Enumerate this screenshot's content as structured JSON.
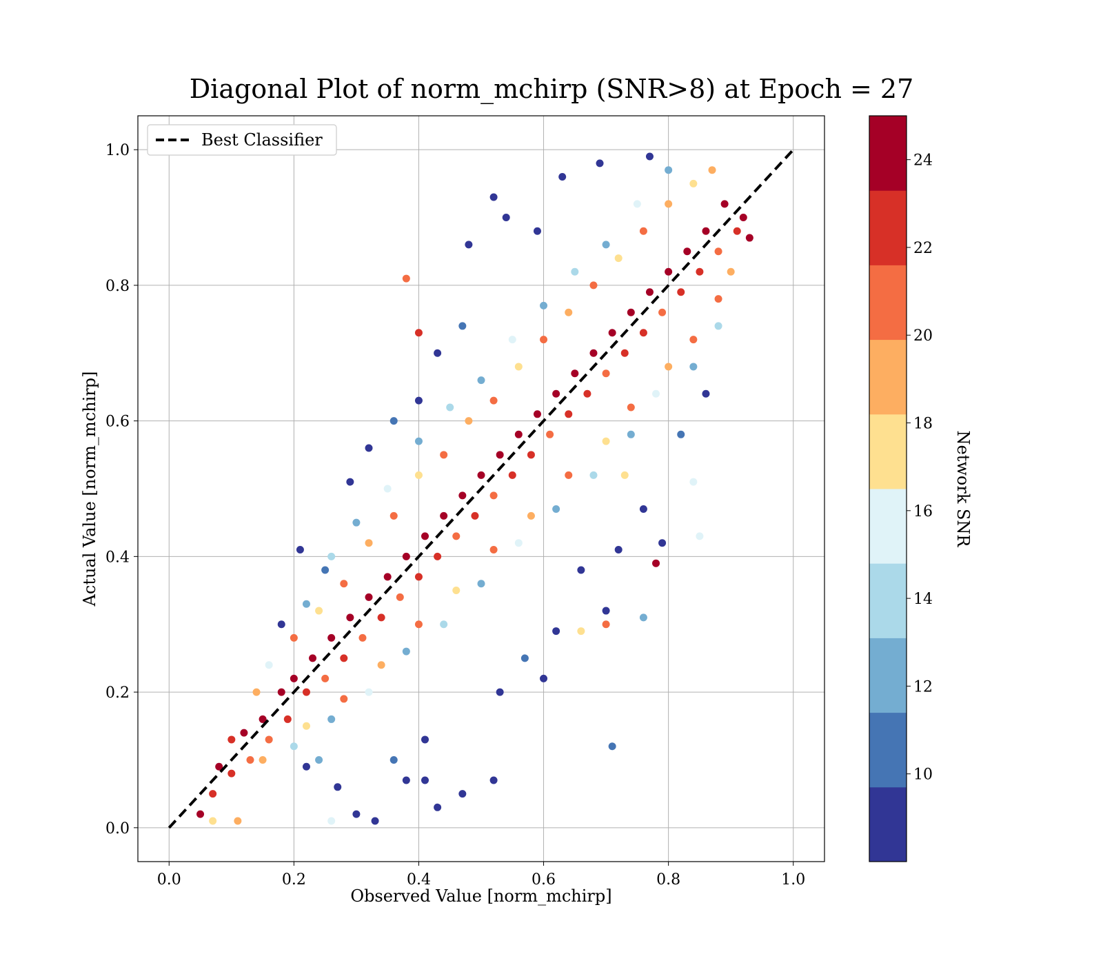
{
  "chart_data": {
    "type": "scatter",
    "title": "Diagonal Plot of norm_mchirp (SNR>8) at Epoch = 27",
    "xlabel": "Observed Value [norm_mchirp]",
    "ylabel": "Actual Value [norm_mchirp]",
    "xlim": [
      -0.05,
      1.05
    ],
    "ylim": [
      -0.05,
      1.05
    ],
    "xticks": [
      "0.0",
      "0.2",
      "0.4",
      "0.6",
      "0.8",
      "1.0"
    ],
    "yticks": [
      "0.0",
      "0.2",
      "0.4",
      "0.6",
      "0.8",
      "1.0"
    ],
    "grid": true,
    "legend": {
      "position": "top-left",
      "entries": [
        {
          "name": "Best Classifier",
          "style": "dashed",
          "color": "#000000"
        }
      ]
    },
    "reference_line": {
      "name": "Best Classifier",
      "x": [
        0,
        1
      ],
      "y": [
        0,
        1
      ]
    },
    "colorbar": {
      "label": "Network SNR",
      "range": [
        8,
        25
      ],
      "ticks": [
        "10",
        "12",
        "14",
        "16",
        "18",
        "20",
        "22",
        "24"
      ],
      "colors": [
        "#313695",
        "#4575b4",
        "#74add1",
        "#abd9e9",
        "#e0f3f8",
        "#fee090",
        "#fdae61",
        "#f46d43",
        "#d73027",
        "#a50026"
      ]
    },
    "series": [
      {
        "color_by": "Network SNR",
        "points": [
          [
            0.05,
            0.02,
            24
          ],
          [
            0.07,
            0.05,
            23
          ],
          [
            0.08,
            0.09,
            24
          ],
          [
            0.1,
            0.08,
            22
          ],
          [
            0.12,
            0.14,
            24
          ],
          [
            0.13,
            0.1,
            20
          ],
          [
            0.15,
            0.16,
            24
          ],
          [
            0.16,
            0.13,
            21
          ],
          [
            0.18,
            0.2,
            24
          ],
          [
            0.19,
            0.16,
            23
          ],
          [
            0.2,
            0.22,
            24
          ],
          [
            0.22,
            0.2,
            22
          ],
          [
            0.23,
            0.25,
            24
          ],
          [
            0.25,
            0.22,
            20
          ],
          [
            0.26,
            0.28,
            24
          ],
          [
            0.28,
            0.25,
            23
          ],
          [
            0.29,
            0.31,
            24
          ],
          [
            0.31,
            0.28,
            21
          ],
          [
            0.32,
            0.34,
            24
          ],
          [
            0.34,
            0.31,
            22
          ],
          [
            0.35,
            0.37,
            24
          ],
          [
            0.37,
            0.34,
            20
          ],
          [
            0.38,
            0.4,
            24
          ],
          [
            0.4,
            0.37,
            23
          ],
          [
            0.41,
            0.43,
            24
          ],
          [
            0.43,
            0.4,
            22
          ],
          [
            0.44,
            0.46,
            24
          ],
          [
            0.46,
            0.43,
            21
          ],
          [
            0.47,
            0.49,
            24
          ],
          [
            0.49,
            0.46,
            23
          ],
          [
            0.5,
            0.52,
            24
          ],
          [
            0.52,
            0.49,
            20
          ],
          [
            0.53,
            0.55,
            24
          ],
          [
            0.55,
            0.52,
            22
          ],
          [
            0.56,
            0.58,
            24
          ],
          [
            0.58,
            0.55,
            23
          ],
          [
            0.59,
            0.61,
            24
          ],
          [
            0.61,
            0.58,
            21
          ],
          [
            0.62,
            0.64,
            24
          ],
          [
            0.64,
            0.61,
            22
          ],
          [
            0.65,
            0.67,
            24
          ],
          [
            0.67,
            0.64,
            23
          ],
          [
            0.68,
            0.7,
            24
          ],
          [
            0.7,
            0.67,
            20
          ],
          [
            0.71,
            0.73,
            24
          ],
          [
            0.73,
            0.7,
            22
          ],
          [
            0.74,
            0.76,
            24
          ],
          [
            0.76,
            0.73,
            23
          ],
          [
            0.77,
            0.79,
            24
          ],
          [
            0.79,
            0.76,
            21
          ],
          [
            0.8,
            0.82,
            24
          ],
          [
            0.82,
            0.79,
            22
          ],
          [
            0.83,
            0.85,
            24
          ],
          [
            0.85,
            0.82,
            23
          ],
          [
            0.86,
            0.88,
            24
          ],
          [
            0.88,
            0.85,
            20
          ],
          [
            0.89,
            0.92,
            24
          ],
          [
            0.91,
            0.88,
            22
          ],
          [
            0.92,
            0.9,
            24
          ],
          [
            0.93,
            0.87,
            24
          ],
          [
            0.1,
            0.13,
            22
          ],
          [
            0.14,
            0.2,
            19
          ],
          [
            0.2,
            0.28,
            21
          ],
          [
            0.24,
            0.32,
            18
          ],
          [
            0.28,
            0.36,
            20
          ],
          [
            0.32,
            0.42,
            19
          ],
          [
            0.36,
            0.46,
            21
          ],
          [
            0.4,
            0.52,
            18
          ],
          [
            0.44,
            0.55,
            20
          ],
          [
            0.48,
            0.6,
            19
          ],
          [
            0.52,
            0.63,
            21
          ],
          [
            0.56,
            0.68,
            18
          ],
          [
            0.6,
            0.72,
            20
          ],
          [
            0.64,
            0.76,
            19
          ],
          [
            0.68,
            0.8,
            21
          ],
          [
            0.72,
            0.84,
            18
          ],
          [
            0.76,
            0.88,
            20
          ],
          [
            0.8,
            0.92,
            19
          ],
          [
            0.84,
            0.95,
            18
          ],
          [
            0.87,
            0.97,
            19
          ],
          [
            0.15,
            0.1,
            19
          ],
          [
            0.22,
            0.15,
            18
          ],
          [
            0.28,
            0.19,
            20
          ],
          [
            0.34,
            0.24,
            19
          ],
          [
            0.4,
            0.3,
            21
          ],
          [
            0.46,
            0.35,
            18
          ],
          [
            0.52,
            0.41,
            20
          ],
          [
            0.58,
            0.46,
            19
          ],
          [
            0.64,
            0.52,
            21
          ],
          [
            0.7,
            0.57,
            18
          ],
          [
            0.74,
            0.62,
            20
          ],
          [
            0.8,
            0.68,
            19
          ],
          [
            0.84,
            0.72,
            21
          ],
          [
            0.88,
            0.78,
            20
          ],
          [
            0.9,
            0.82,
            19
          ],
          [
            0.16,
            0.24,
            15
          ],
          [
            0.22,
            0.33,
            13
          ],
          [
            0.26,
            0.4,
            14
          ],
          [
            0.3,
            0.45,
            12
          ],
          [
            0.35,
            0.5,
            15
          ],
          [
            0.4,
            0.57,
            13
          ],
          [
            0.45,
            0.62,
            14
          ],
          [
            0.5,
            0.66,
            12
          ],
          [
            0.55,
            0.72,
            15
          ],
          [
            0.6,
            0.77,
            13
          ],
          [
            0.65,
            0.82,
            14
          ],
          [
            0.7,
            0.86,
            12
          ],
          [
            0.75,
            0.92,
            15
          ],
          [
            0.8,
            0.97,
            13
          ],
          [
            0.2,
            0.12,
            14
          ],
          [
            0.26,
            0.16,
            12
          ],
          [
            0.32,
            0.2,
            15
          ],
          [
            0.38,
            0.26,
            13
          ],
          [
            0.44,
            0.3,
            14
          ],
          [
            0.5,
            0.36,
            12
          ],
          [
            0.56,
            0.42,
            15
          ],
          [
            0.62,
            0.47,
            13
          ],
          [
            0.68,
            0.52,
            14
          ],
          [
            0.74,
            0.58,
            12
          ],
          [
            0.78,
            0.64,
            15
          ],
          [
            0.84,
            0.68,
            13
          ],
          [
            0.88,
            0.74,
            14
          ],
          [
            0.18,
            0.3,
            9
          ],
          [
            0.21,
            0.41,
            9
          ],
          [
            0.25,
            0.38,
            10
          ],
          [
            0.29,
            0.51,
            9
          ],
          [
            0.32,
            0.56,
            9
          ],
          [
            0.36,
            0.6,
            10
          ],
          [
            0.4,
            0.63,
            9
          ],
          [
            0.43,
            0.7,
            9
          ],
          [
            0.47,
            0.74,
            10
          ],
          [
            0.48,
            0.86,
            9
          ],
          [
            0.52,
            0.93,
            9
          ],
          [
            0.54,
            0.9,
            9
          ],
          [
            0.59,
            0.88,
            9
          ],
          [
            0.63,
            0.96,
            9
          ],
          [
            0.69,
            0.98,
            9
          ],
          [
            0.77,
            0.99,
            9
          ],
          [
            0.22,
            0.09,
            9
          ],
          [
            0.27,
            0.06,
            9
          ],
          [
            0.3,
            0.02,
            9
          ],
          [
            0.33,
            0.01,
            9
          ],
          [
            0.38,
            0.07,
            9
          ],
          [
            0.41,
            0.07,
            9
          ],
          [
            0.43,
            0.03,
            9
          ],
          [
            0.47,
            0.05,
            9
          ],
          [
            0.52,
            0.07,
            9
          ],
          [
            0.41,
            0.13,
            9
          ],
          [
            0.36,
            0.1,
            10
          ],
          [
            0.53,
            0.2,
            9
          ],
          [
            0.57,
            0.25,
            10
          ],
          [
            0.6,
            0.22,
            9
          ],
          [
            0.62,
            0.29,
            9
          ],
          [
            0.66,
            0.38,
            9
          ],
          [
            0.7,
            0.32,
            9
          ],
          [
            0.71,
            0.12,
            10
          ],
          [
            0.72,
            0.41,
            9
          ],
          [
            0.76,
            0.47,
            9
          ],
          [
            0.79,
            0.42,
            9
          ],
          [
            0.82,
            0.58,
            10
          ],
          [
            0.86,
            0.64,
            9
          ],
          [
            0.7,
            0.3,
            20
          ],
          [
            0.78,
            0.39,
            24
          ],
          [
            0.4,
            0.73,
            22
          ],
          [
            0.38,
            0.81,
            20
          ],
          [
            0.73,
            0.52,
            18
          ],
          [
            0.76,
            0.31,
            13
          ],
          [
            0.84,
            0.51,
            16
          ],
          [
            0.85,
            0.43,
            16
          ],
          [
            0.66,
            0.29,
            18
          ],
          [
            0.07,
            0.01,
            17
          ],
          [
            0.11,
            0.01,
            19
          ],
          [
            0.26,
            0.01,
            16
          ],
          [
            0.24,
            0.1,
            13
          ]
        ]
      }
    ]
  }
}
